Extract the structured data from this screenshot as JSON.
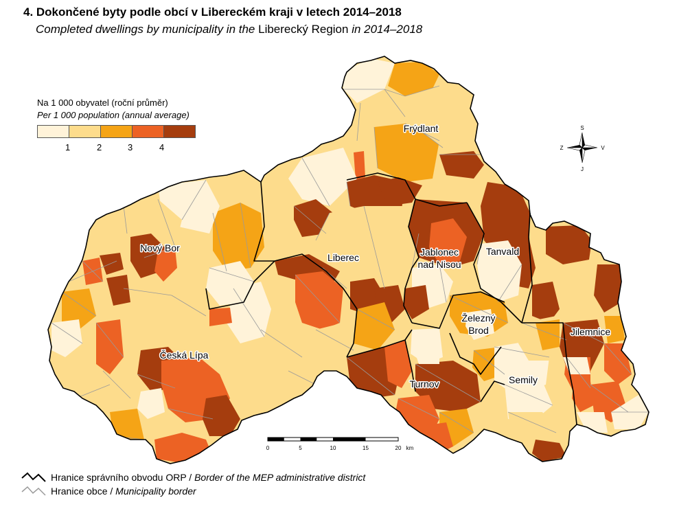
{
  "title": {
    "cz": "4. Dokončené byty podle obcí v Libereckém kraji v letech 2014–2018",
    "en_part1": "Completed dwellings by municipality in the ",
    "en_part2": "Liberecký Region",
    "en_part3": " in 2014–2018"
  },
  "legend": {
    "title_cz": "Na 1 000 obyvatel (roční průměr)",
    "title_en": "Per 1 000 population (annual average)",
    "classes": [
      {
        "color": "#fff3d9"
      },
      {
        "color": "#fddc8c"
      },
      {
        "color": "#f5a416"
      },
      {
        "color": "#ec6224"
      },
      {
        "color": "#a53d0e"
      }
    ],
    "breaks": [
      "1",
      "2",
      "3",
      "4"
    ]
  },
  "cities": [
    {
      "name": "Frýdlant",
      "lines": [
        "Frýdlant"
      ]
    },
    {
      "name": "Nový Bor",
      "lines": [
        "Nový Bor"
      ]
    },
    {
      "name": "Liberec",
      "lines": [
        "Liberec"
      ]
    },
    {
      "name": "Jablonec nad Nisou",
      "lines": [
        "Jablonec",
        "nad Nisou"
      ]
    },
    {
      "name": "Tanvald",
      "lines": [
        "Tanvald"
      ]
    },
    {
      "name": "Železný Brod",
      "lines": [
        "Železný",
        "Brod"
      ]
    },
    {
      "name": "Jilemnice",
      "lines": [
        "Jilemnice"
      ]
    },
    {
      "name": "Česká Lípa",
      "lines": [
        "Česká Lípa"
      ]
    },
    {
      "name": "Turnov",
      "lines": [
        "Turnov"
      ]
    },
    {
      "name": "Semily",
      "lines": [
        "Semily"
      ]
    }
  ],
  "scale_bar": {
    "ticks": [
      "0",
      "5",
      "10",
      "15",
      "20"
    ],
    "unit": "km"
  },
  "compass": {
    "n": "S",
    "s": "J",
    "e": "V",
    "w": "Z"
  },
  "border_legend": {
    "orp_cz": "Hranice správního obvodu ORP / ",
    "orp_en": "Border of the MEP administrative district",
    "municipality_cz": "Hranice obce / ",
    "municipality_en": "Municipality border"
  }
}
